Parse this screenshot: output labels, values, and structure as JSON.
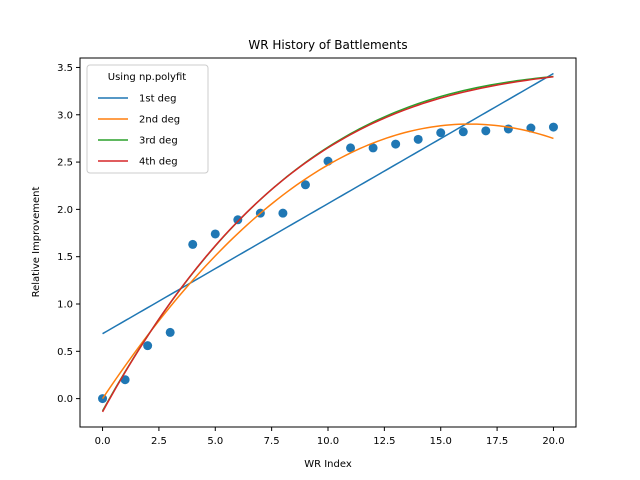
{
  "chart_data": {
    "type": "scatter",
    "title": "WR History of Battlements",
    "xlabel": "WR Index",
    "ylabel": "Relative Improvement",
    "xlim": [
      -1.0,
      21.0
    ],
    "ylim": [
      -0.3,
      3.6
    ],
    "xticks": [
      0.0,
      2.5,
      5.0,
      7.5,
      10.0,
      12.5,
      15.0,
      17.5,
      20.0
    ],
    "xtick_labels": [
      "0.0",
      "2.5",
      "5.0",
      "7.5",
      "10.0",
      "12.5",
      "15.0",
      "17.5",
      "20.0"
    ],
    "yticks": [
      0.0,
      0.5,
      1.0,
      1.5,
      2.0,
      2.5,
      3.0,
      3.5
    ],
    "ytick_labels": [
      "0.0",
      "0.5",
      "1.0",
      "1.5",
      "2.0",
      "2.5",
      "3.0",
      "3.5"
    ],
    "grid": false,
    "legend": {
      "title": "Using np.polyfit",
      "placement": "top-left"
    },
    "scatter": {
      "color": "#1f77b4",
      "x": [
        0,
        1,
        2,
        3,
        4,
        5,
        6,
        7,
        8,
        9,
        10,
        11,
        12,
        13,
        14,
        15,
        16,
        17,
        18,
        19,
        20
      ],
      "y": [
        0.0,
        0.2,
        0.56,
        0.7,
        1.63,
        1.74,
        1.89,
        1.96,
        1.96,
        2.26,
        2.51,
        2.65,
        2.65,
        2.69,
        2.74,
        2.81,
        2.82,
        2.83,
        2.85,
        2.86,
        2.87
      ]
    },
    "series": [
      {
        "name": "1st deg",
        "color": "#1f77b4",
        "coefficients": [
          0.686,
          0.1375
        ]
      },
      {
        "name": "2nd deg",
        "color": "#ff7f0e",
        "coefficients": [
          0.0,
          0.3565,
          -0.01095
        ]
      },
      {
        "name": "3rd deg",
        "color": "#2ca02c",
        "coefficients": [
          -0.13,
          0.4307,
          -0.01768,
          0.000249
        ]
      },
      {
        "name": "4th deg",
        "color": "#d62728",
        "coefficients": [
          -0.14,
          0.4371,
          -0.0186,
          0.00028,
          0.0
        ]
      }
    ]
  }
}
